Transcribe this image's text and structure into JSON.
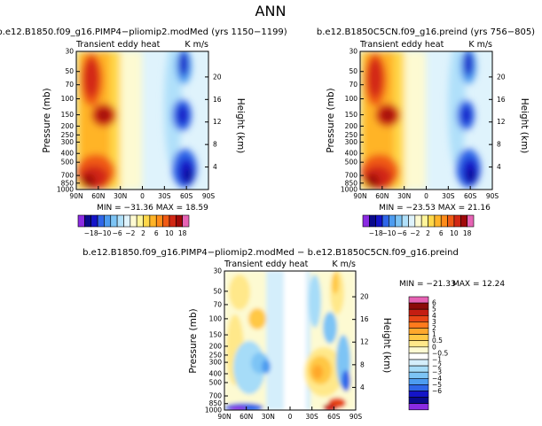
{
  "page_title": "ANN",
  "colors": {
    "abs_scale": [
      "#8b2be2",
      "#0a0a8c",
      "#1414c8",
      "#2f66e8",
      "#4d9cf0",
      "#7dc4f5",
      "#b0e0fa",
      "#dff3fc",
      "#fdfad2",
      "#fff59a",
      "#ffd84a",
      "#ffb428",
      "#ff8c1a",
      "#f05a14",
      "#d22814",
      "#a00a0a",
      "#e663b4"
    ],
    "diff_scale": [
      "#8b2be2",
      "#0a0a8c",
      "#1414c8",
      "#2f66e8",
      "#4d9cf0",
      "#7dc4f5",
      "#a6dcf8",
      "#d4eefb",
      "#ffffff",
      "#fdfad2",
      "#ffe88a",
      "#ffc844",
      "#ffa82c",
      "#ff7a1c",
      "#e84616",
      "#c41e12",
      "#8b0a0a",
      "#e663b4"
    ]
  },
  "chart_data": [
    {
      "type": "heatmap",
      "title": "b.e12.B1850.f09_g16.PIMP4−pliomip2.modMed (yrs 1150−1199)",
      "subtitle_left": "Transient eddy heat",
      "subtitle_right": "K m/s",
      "ylabel": "Pressure (mb)",
      "ylabel_right": "Height (km)",
      "x_ticks": [
        "90N",
        "60N",
        "30N",
        "0",
        "30S",
        "60S",
        "90S"
      ],
      "y_ticks": [
        "30",
        "50",
        "70",
        "100",
        "150",
        "200",
        "250",
        "300",
        "400",
        "500",
        "700",
        "850",
        "1000"
      ],
      "y_ticks_right": [
        "20",
        "16",
        "12",
        "8",
        "4"
      ],
      "stats": "MIN = −31.36   MAX = 18.59",
      "min": -31.36,
      "max": 18.59
    },
    {
      "type": "heatmap",
      "title": "b.e12.B1850C5CN.f09_g16.preind (yrs 756−805)",
      "subtitle_left": "Transient eddy heat",
      "subtitle_right": "K m/s",
      "ylabel": "Pressure (mb)",
      "ylabel_right": "Height (km)",
      "x_ticks": [
        "90N",
        "60N",
        "30N",
        "0",
        "30S",
        "60S",
        "90S"
      ],
      "y_ticks": [
        "30",
        "50",
        "70",
        "100",
        "150",
        "200",
        "250",
        "300",
        "400",
        "500",
        "700",
        "850",
        "1000"
      ],
      "y_ticks_right": [
        "20",
        "16",
        "12",
        "8",
        "4"
      ],
      "stats": "MIN = −23.53   MAX = 21.16",
      "min": -23.53,
      "max": 21.16
    },
    {
      "type": "heatmap",
      "title": "b.e12.B1850.f09_g16.PIMP4−pliomip2.modMed − b.e12.B1850C5CN.f09_g16.preind",
      "subtitle_left": "Transient eddy heat",
      "subtitle_right": "K m/s",
      "ylabel": "Pressure (mb)",
      "ylabel_right": "Height (km)",
      "x_ticks": [
        "90N",
        "60N",
        "30N",
        "0",
        "30S",
        "60S",
        "90S"
      ],
      "y_ticks": [
        "30",
        "50",
        "70",
        "100",
        "150",
        "200",
        "250",
        "300",
        "400",
        "500",
        "700",
        "850",
        "1000"
      ],
      "y_ticks_right": [
        "20",
        "16",
        "12",
        "8",
        "4"
      ],
      "stats_min": "MIN = −21.33",
      "stats_max": "MAX =  12.24",
      "min": -21.33,
      "max": 12.24
    }
  ],
  "abs_colorbar_labels": [
    "−18",
    "−10",
    "−6",
    "−2",
    "2",
    "6",
    "10",
    "18"
  ],
  "diff_colorbar_labels": [
    "6",
    "5",
    "4",
    "3",
    "2",
    "1",
    "0.5",
    "0",
    "−0.5",
    "−1",
    "−2",
    "−3",
    "−4",
    "−5",
    "−6"
  ]
}
